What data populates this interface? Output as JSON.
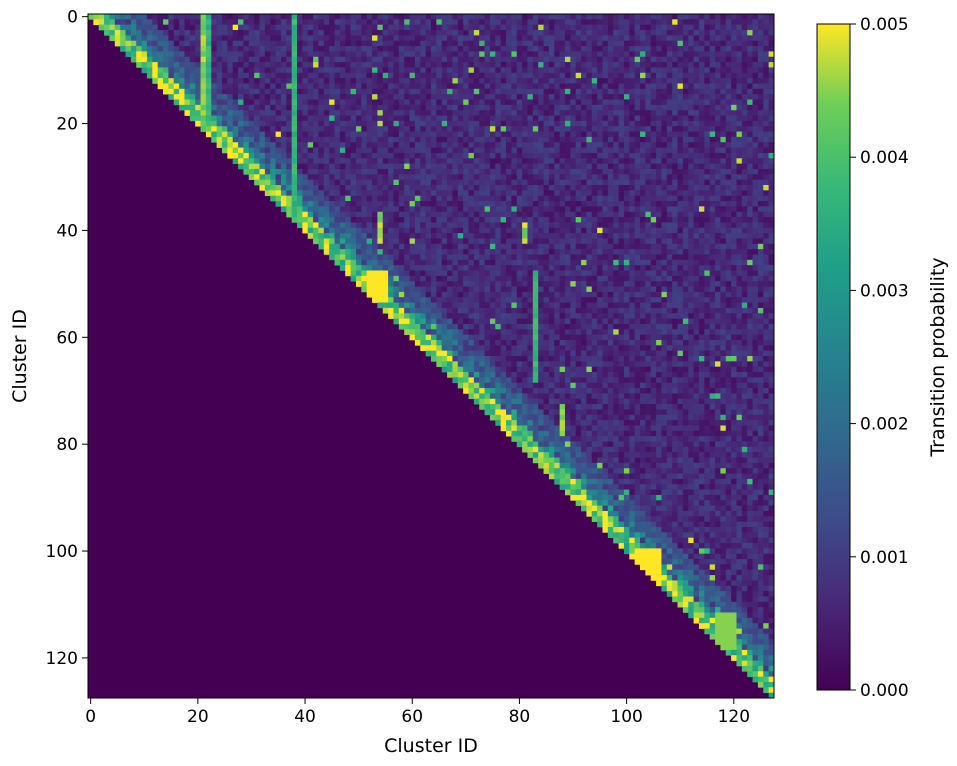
{
  "chart_data": {
    "type": "heatmap",
    "matrix_size": 128,
    "triangle": "upper",
    "colormap": "viridis",
    "xlabel": "Cluster ID",
    "ylabel": "Cluster ID",
    "x_ticks": [
      "0",
      "20",
      "40",
      "60",
      "80",
      "100",
      "120"
    ],
    "y_ticks": [
      "0",
      "20",
      "40",
      "60",
      "80",
      "100",
      "120"
    ],
    "x_tick_values": [
      0,
      20,
      40,
      60,
      80,
      100,
      120
    ],
    "y_tick_values": [
      0,
      20,
      40,
      60,
      80,
      100,
      120
    ],
    "xlim": [
      0,
      127
    ],
    "ylim": [
      0,
      127
    ],
    "colorbar": {
      "label": "Transition probability",
      "range": [
        0.0,
        0.005
      ],
      "ticks": [
        "0.000",
        "0.001",
        "0.002",
        "0.003",
        "0.004",
        "0.005"
      ],
      "tick_values": [
        0.0,
        0.001,
        0.002,
        0.003,
        0.004,
        0.005
      ]
    },
    "below_diagonal_value": 0.0,
    "near_diagonal_typical_value": 0.0045,
    "far_off_diagonal_typical_value": 0.0008,
    "column_bands": [
      {
        "column": 21,
        "rows": [
          0,
          20
        ],
        "value": 0.0048
      },
      {
        "column": 22,
        "rows": [
          0,
          20
        ],
        "value": 0.004
      },
      {
        "column": 38,
        "rows": [
          0,
          36
        ],
        "value": 0.004
      },
      {
        "column": 54,
        "rows": [
          37,
          42
        ],
        "value": 0.005
      },
      {
        "column": 81,
        "rows": [
          39,
          42
        ],
        "value": 0.005
      },
      {
        "column": 83,
        "rows": [
          48,
          68
        ],
        "value": 0.004
      },
      {
        "column": 88,
        "rows": [
          73,
          78
        ],
        "value": 0.005
      }
    ],
    "highlight_blocks": [
      {
        "rows": [
          48,
          53
        ],
        "cols": [
          52,
          55
        ],
        "value": 0.005
      },
      {
        "rows": [
          100,
          106
        ],
        "cols": [
          102,
          106
        ],
        "value": 0.005
      },
      {
        "rows": [
          112,
          118
        ],
        "cols": [
          117,
          120
        ],
        "value": 0.0045
      }
    ]
  }
}
